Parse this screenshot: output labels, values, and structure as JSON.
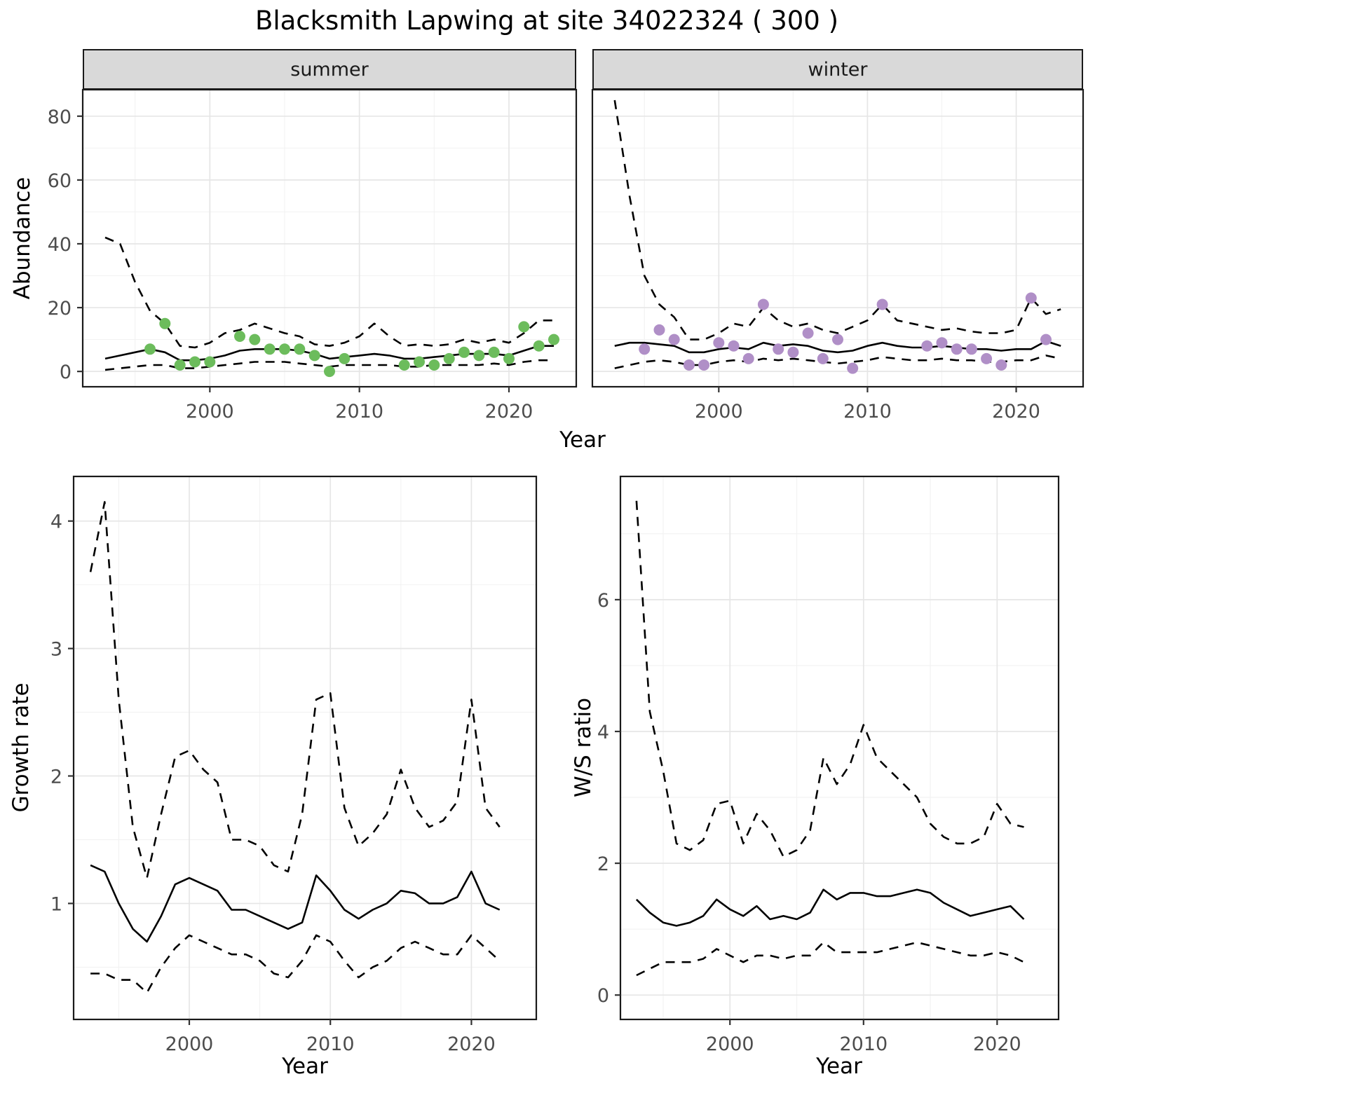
{
  "title": "Blacksmith Lapwing at site 34022324 ( 300 )",
  "colors": {
    "summer_points": "#6CBC5C",
    "winter_points": "#B08FC7",
    "line": "#000000",
    "strip_background": "#D9D9D9",
    "grid_major": "#E6E6E6",
    "grid_minor": "#F2F2F2",
    "panel_border": "#1A1A1A",
    "tick_label": "#4D4D4D"
  },
  "chart_data": [
    {
      "id": "abundance-summer",
      "type": "line",
      "facet_label": "summer",
      "xlabel": "Year",
      "ylabel": "Abundance",
      "xlim": [
        1991.5,
        2024.5
      ],
      "ylim": [
        -4.8,
        88.3
      ],
      "xticks": [
        2000,
        2010,
        2020
      ],
      "yticks": [
        0,
        20,
        40,
        60,
        80
      ],
      "grid": true,
      "x": [
        1993,
        1994,
        1995,
        1996,
        1997,
        1998,
        1999,
        2000,
        2001,
        2002,
        2003,
        2004,
        2005,
        2006,
        2007,
        2008,
        2009,
        2010,
        2011,
        2012,
        2013,
        2014,
        2015,
        2016,
        2017,
        2018,
        2019,
        2020,
        2021,
        2022,
        2023
      ],
      "series": [
        {
          "name": "median",
          "style": "solid",
          "color": "#000000",
          "values": [
            4,
            5,
            6,
            7,
            6,
            3.5,
            3.5,
            4,
            5,
            6.5,
            7,
            7,
            7,
            6.5,
            5.5,
            4,
            4.5,
            5,
            5.5,
            5,
            4,
            4,
            4.5,
            5,
            5.5,
            5.5,
            5.5,
            5,
            6.5,
            8,
            8
          ]
        },
        {
          "name": "upper_ci",
          "style": "dashed",
          "color": "#000000",
          "values": [
            42,
            40,
            28,
            19,
            15,
            8,
            7.5,
            9,
            12,
            13,
            15,
            13.5,
            12,
            11,
            8.5,
            8,
            9,
            11,
            15,
            11,
            8,
            8.5,
            8,
            8.5,
            10,
            9,
            10,
            9,
            12,
            16,
            16
          ]
        },
        {
          "name": "lower_ci",
          "style": "dashed",
          "color": "#000000",
          "values": [
            0.5,
            1,
            1.5,
            2,
            2,
            1,
            1,
            1.5,
            2,
            2.5,
            3,
            3,
            3,
            2.5,
            2,
            1.5,
            2,
            2,
            2,
            2,
            1.5,
            1.5,
            2,
            2,
            2,
            2,
            2.5,
            2,
            3,
            3.5,
            3.5
          ]
        },
        {
          "name": "observations",
          "style": "points",
          "color": "#6CBC5C",
          "x": [
            1996,
            1997,
            1998,
            1999,
            2000,
            2002,
            2003,
            2004,
            2005,
            2006,
            2007,
            2008,
            2009,
            2013,
            2014,
            2015,
            2016,
            2017,
            2018,
            2019,
            2020,
            2021,
            2022,
            2023
          ],
          "values": [
            7,
            15,
            2,
            3,
            3,
            11,
            10,
            7,
            7,
            7,
            5,
            0,
            4,
            2,
            3,
            2,
            4,
            6,
            5,
            6,
            4,
            14,
            8,
            10
          ]
        }
      ]
    },
    {
      "id": "abundance-winter",
      "type": "line",
      "facet_label": "winter",
      "xlabel": "Year",
      "ylabel": "Abundance",
      "xlim": [
        1991.5,
        2024.5
      ],
      "ylim": [
        -4.8,
        88.3
      ],
      "xticks": [
        2000,
        2010,
        2020
      ],
      "yticks": [
        0,
        20,
        40,
        60,
        80
      ],
      "grid": true,
      "x": [
        1993,
        1994,
        1995,
        1996,
        1997,
        1998,
        1999,
        2000,
        2001,
        2002,
        2003,
        2004,
        2005,
        2006,
        2007,
        2008,
        2009,
        2010,
        2011,
        2012,
        2013,
        2014,
        2015,
        2016,
        2017,
        2018,
        2019,
        2020,
        2021,
        2022,
        2023
      ],
      "series": [
        {
          "name": "median",
          "style": "solid",
          "color": "#000000",
          "values": [
            8,
            9,
            9,
            8.5,
            8,
            6,
            6,
            7,
            7.5,
            7,
            9,
            8,
            8.5,
            8,
            6.5,
            6,
            6.5,
            8,
            9,
            8,
            7.5,
            7.5,
            8,
            7.5,
            7,
            7,
            6.5,
            7,
            7,
            9.5,
            8
          ]
        },
        {
          "name": "upper_ci",
          "style": "dashed",
          "color": "#000000",
          "values": [
            85,
            55,
            30,
            21,
            17,
            10,
            10,
            12,
            15,
            14,
            20,
            16,
            14,
            15,
            13,
            12,
            14,
            16,
            21,
            16,
            15,
            14,
            13,
            13.5,
            12.5,
            12,
            12,
            13,
            23,
            18,
            19.5
          ]
        },
        {
          "name": "lower_ci",
          "style": "dashed",
          "color": "#000000",
          "values": [
            1,
            2,
            3,
            3.5,
            3,
            2,
            2,
            3,
            3.5,
            3,
            4,
            3.5,
            4,
            3.5,
            3,
            2.5,
            3,
            3.5,
            4.5,
            4,
            3.5,
            3.5,
            4,
            3.5,
            3.5,
            3,
            3,
            3.5,
            3.5,
            5,
            4
          ]
        },
        {
          "name": "observations",
          "style": "points",
          "color": "#B08FC7",
          "x": [
            1995,
            1996,
            1997,
            1998,
            1999,
            2000,
            2001,
            2002,
            2003,
            2004,
            2005,
            2006,
            2007,
            2008,
            2009,
            2011,
            2014,
            2015,
            2016,
            2017,
            2018,
            2019,
            2021,
            2022
          ],
          "values": [
            7,
            13,
            10,
            2,
            2,
            9,
            8,
            4,
            21,
            7,
            6,
            12,
            4,
            10,
            1,
            21,
            8,
            9,
            7,
            7,
            4,
            2,
            23,
            10
          ]
        }
      ]
    },
    {
      "id": "growth-rate",
      "type": "line",
      "facet_label": "",
      "xlabel": "Year",
      "ylabel": "Growth rate",
      "xlim": [
        1991.8,
        2024.6
      ],
      "ylim": [
        0.09,
        4.35
      ],
      "xticks": [
        2000,
        2010,
        2020
      ],
      "yticks": [
        1,
        2,
        3,
        4
      ],
      "grid": true,
      "x": [
        1993,
        1994,
        1995,
        1996,
        1997,
        1998,
        1999,
        2000,
        2001,
        2002,
        2003,
        2004,
        2005,
        2006,
        2007,
        2008,
        2009,
        2010,
        2011,
        2012,
        2013,
        2014,
        2015,
        2016,
        2017,
        2018,
        2019,
        2020,
        2021,
        2022
      ],
      "series": [
        {
          "name": "median",
          "style": "solid",
          "color": "#000000",
          "values": [
            1.3,
            1.25,
            1.0,
            0.8,
            0.7,
            0.9,
            1.15,
            1.2,
            1.15,
            1.1,
            0.95,
            0.95,
            0.9,
            0.85,
            0.8,
            0.85,
            1.22,
            1.1,
            0.95,
            0.88,
            0.95,
            1.0,
            1.1,
            1.08,
            1.0,
            1.0,
            1.05,
            1.25,
            1.0,
            0.95
          ]
        },
        {
          "name": "upper_ci",
          "style": "dashed",
          "color": "#000000",
          "values": [
            3.6,
            4.15,
            2.6,
            1.6,
            1.2,
            1.7,
            2.15,
            2.2,
            2.05,
            1.95,
            1.5,
            1.5,
            1.45,
            1.3,
            1.25,
            1.7,
            2.6,
            2.65,
            1.75,
            1.45,
            1.55,
            1.7,
            2.05,
            1.75,
            1.6,
            1.65,
            1.8,
            2.6,
            1.75,
            1.6
          ]
        },
        {
          "name": "lower_ci",
          "style": "dashed",
          "color": "#000000",
          "values": [
            0.45,
            0.45,
            0.4,
            0.4,
            0.3,
            0.5,
            0.65,
            0.75,
            0.7,
            0.65,
            0.6,
            0.6,
            0.55,
            0.45,
            0.42,
            0.55,
            0.75,
            0.7,
            0.55,
            0.42,
            0.5,
            0.55,
            0.65,
            0.7,
            0.65,
            0.6,
            0.6,
            0.75,
            0.65,
            0.55
          ]
        }
      ]
    },
    {
      "id": "ws-ratio",
      "type": "line",
      "facet_label": "",
      "xlabel": "Year",
      "ylabel": "W/S ratio",
      "xlim": [
        1991.8,
        2024.6
      ],
      "ylim": [
        -0.37,
        7.87
      ],
      "xticks": [
        2000,
        2010,
        2020
      ],
      "yticks": [
        0,
        2,
        4,
        6
      ],
      "grid": true,
      "x": [
        1993,
        1994,
        1995,
        1996,
        1997,
        1998,
        1999,
        2000,
        2001,
        2002,
        2003,
        2004,
        2005,
        2006,
        2007,
        2008,
        2009,
        2010,
        2011,
        2012,
        2013,
        2014,
        2015,
        2016,
        2017,
        2018,
        2019,
        2020,
        2021,
        2022
      ],
      "series": [
        {
          "name": "median",
          "style": "solid",
          "color": "#000000",
          "values": [
            1.45,
            1.25,
            1.1,
            1.05,
            1.1,
            1.2,
            1.45,
            1.3,
            1.2,
            1.35,
            1.15,
            1.2,
            1.15,
            1.25,
            1.6,
            1.45,
            1.55,
            1.55,
            1.5,
            1.5,
            1.55,
            1.6,
            1.55,
            1.4,
            1.3,
            1.2,
            1.25,
            1.3,
            1.35,
            1.15
          ]
        },
        {
          "name": "upper_ci",
          "style": "dashed",
          "color": "#000000",
          "values": [
            7.5,
            4.3,
            3.4,
            2.3,
            2.2,
            2.35,
            2.9,
            2.95,
            2.3,
            2.75,
            2.5,
            2.1,
            2.2,
            2.5,
            3.6,
            3.2,
            3.5,
            4.1,
            3.6,
            3.4,
            3.2,
            3.0,
            2.6,
            2.4,
            2.3,
            2.3,
            2.4,
            2.9,
            2.6,
            2.55
          ]
        },
        {
          "name": "lower_ci",
          "style": "dashed",
          "color": "#000000",
          "values": [
            0.3,
            0.4,
            0.5,
            0.5,
            0.5,
            0.55,
            0.7,
            0.6,
            0.5,
            0.6,
            0.6,
            0.55,
            0.6,
            0.6,
            0.8,
            0.65,
            0.65,
            0.65,
            0.65,
            0.7,
            0.75,
            0.8,
            0.75,
            0.7,
            0.65,
            0.6,
            0.6,
            0.65,
            0.6,
            0.5
          ]
        }
      ]
    }
  ]
}
